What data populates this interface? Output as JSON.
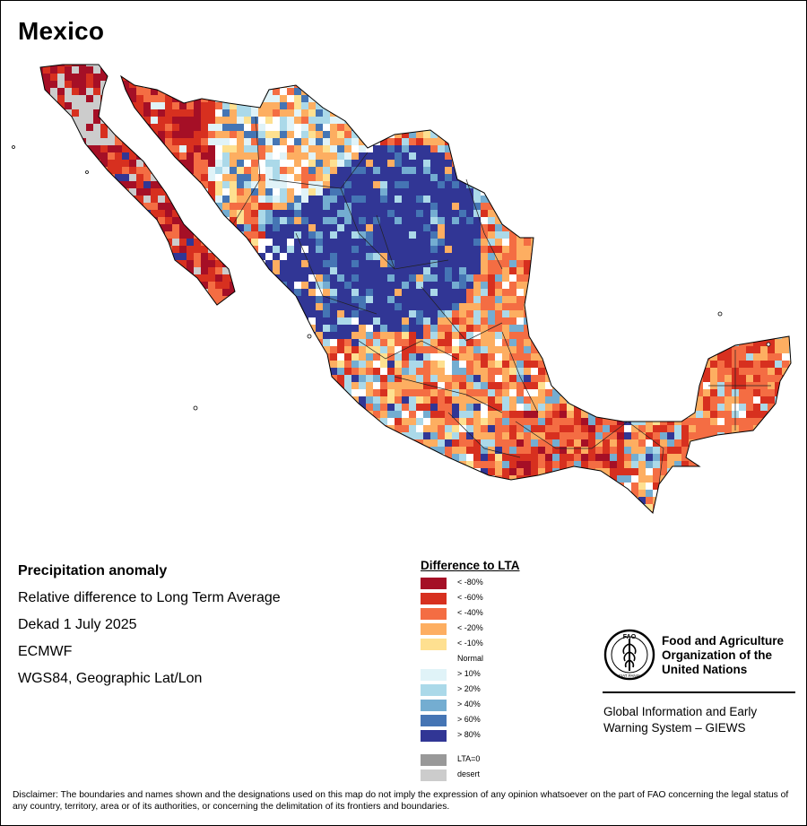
{
  "title": "Mexico",
  "info": {
    "heading": "Precipitation anomaly",
    "line1": "Relative difference to Long Term Average",
    "line2": "Dekad 1 July 2025",
    "line3": "ECMWF",
    "line4": "WGS84, Geographic Lat/Lon"
  },
  "legend": {
    "title": "Difference to LTA",
    "items": [
      {
        "label": "< -80%",
        "color": "#a50f26"
      },
      {
        "label": "< -60%",
        "color": "#d7301f"
      },
      {
        "label": "< -40%",
        "color": "#f46d43"
      },
      {
        "label": "< -20%",
        "color": "#fdae61"
      },
      {
        "label": "< -10%",
        "color": "#fee090"
      },
      {
        "label": "Normal",
        "color": "#ffffff"
      },
      {
        "label": "> 10%",
        "color": "#e0f3f8"
      },
      {
        "label": "> 20%",
        "color": "#abd9e9"
      },
      {
        "label": "> 40%",
        "color": "#74add1"
      },
      {
        "label": "> 60%",
        "color": "#4575b4"
      },
      {
        "label": "> 80%",
        "color": "#313695"
      },
      {
        "label": "LTA=0",
        "color": "#999999"
      },
      {
        "label": "desert",
        "color": "#cccccc"
      }
    ]
  },
  "fao": {
    "logo_text": "FAO",
    "logo_motto": "FIAT PANIS",
    "name_line1": "Food and Agriculture",
    "name_line2": "Organization of the",
    "name_line3": "United Nations",
    "giews_line1": "Global Information and Early",
    "giews_line2": "Warning System – GIEWS"
  },
  "disclaimer": "Disclaimer: The boundaries and names shown and the designations used on this map do not imply the expression of any opinion whatsoever on the part of FAO concerning the legal status of any country, territory, area or of its authorities, or concerning the delimitation of its frontiers and boundaries.",
  "map": {
    "region_anomaly_pattern": [
      {
        "region": "baja-california-north",
        "dominant": "< -80%"
      },
      {
        "region": "baja-california-interior",
        "dominant": "desert"
      },
      {
        "region": "sonora-coast",
        "dominant": "< -60%"
      },
      {
        "region": "chihuahua-coahuila-durango-zacatecas",
        "dominant": "> 80%"
      },
      {
        "region": "gulf-coast",
        "dominant": "< -40%"
      },
      {
        "region": "southern-mexico",
        "dominant": "< -60%"
      },
      {
        "region": "yucatan",
        "dominant": "< -40%"
      }
    ]
  }
}
